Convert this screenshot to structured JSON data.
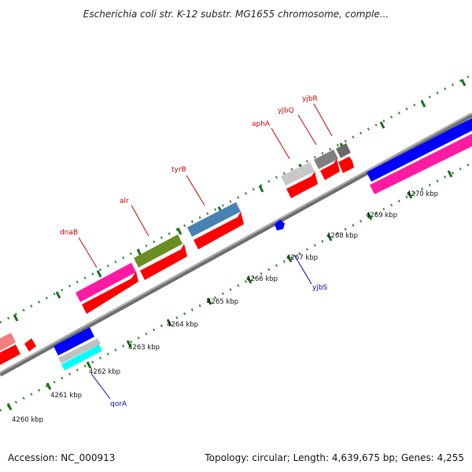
{
  "title": "Escherichia coli str. K-12 substr. MG1655 chromosome, comple...",
  "footer": {
    "accession": "Accession: NC_000913",
    "summary": "Topology: circular; Length: 4,639,675 bp; Genes: 4,255"
  },
  "colors": {
    "backbone": "#808080",
    "tick_dots": "#3a8a3a",
    "forward_label": "#cc0000",
    "reverse_label": "#0000cc",
    "cds_red": "#ff0000"
  },
  "ruler": {
    "ticks": [
      "4260 kbp",
      "4261 kbp",
      "4262 kbp",
      "4263 kbp",
      "4264 kbp",
      "4265 kbp",
      "4266 kbp",
      "4267 kbp",
      "4268 kbp",
      "4269 kbp",
      "4270 kbp"
    ]
  },
  "genes": {
    "forward": [
      {
        "name": "dnaB",
        "color": "#ff1aa3"
      },
      {
        "name": "alr",
        "color": "#6b8e23"
      },
      {
        "name": "tyrB",
        "color": "#4682b4"
      },
      {
        "name": "aphA",
        "color": "#c8c8c8"
      },
      {
        "name": "yjbQ",
        "color": "#808080"
      },
      {
        "name": "yjbR",
        "color": "#696969"
      }
    ],
    "reverse": [
      {
        "name": "qorA",
        "color": "#0000ff"
      },
      {
        "name": "yjbS",
        "color": "#0000ff"
      }
    ]
  }
}
